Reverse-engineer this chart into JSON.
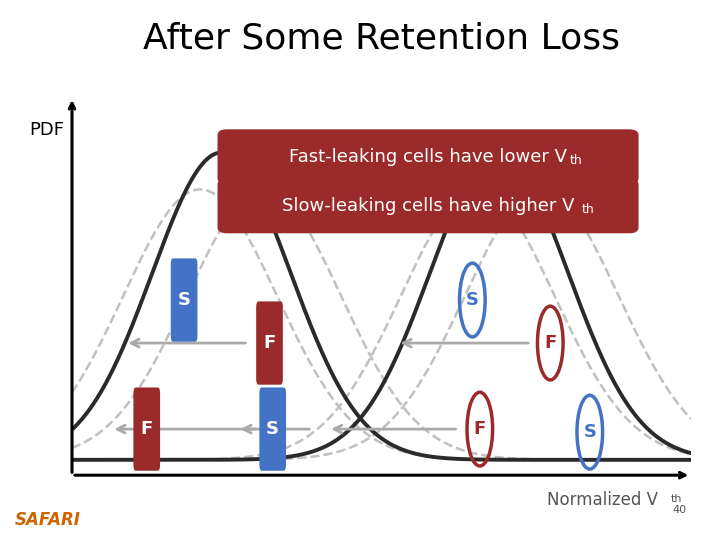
{
  "title": "After Some Retention Loss",
  "title_fontsize": 26,
  "pdf_label": "PDF",
  "xaxis_label": "Normalized V",
  "xaxis_sub": "th",
  "xaxis_num": "40",
  "safari_text": "SAFARI",
  "safari_color": "#CC6600",
  "legend1_text": "Fast-leaking cells have lower V",
  "legend1_sub": "th",
  "legend2_text": "Slow-leaking cells have higher V",
  "legend2_sub": "th",
  "legend_bg": "#9B2B2B",
  "legend_text_color": "#FFFFFF",
  "bg_color": "#FFFFFF",
  "curve_dark": "#2A2A2A",
  "curve_dashed": "#C0C0C0",
  "s_fill_color": "#4472C4",
  "f_fill_color": "#9B2B2B",
  "s_circle_color": "#4472C4",
  "f_circle_color": "#9B2B2B",
  "arrow_color": "#AAAAAA",
  "solid0_mu": 1.2,
  "solid0_sig": 0.65,
  "solid0_amp": 1.0,
  "solid1_mu": 3.8,
  "solid1_sig": 0.65,
  "solid1_amp": 1.0,
  "dash0a_mu": 1.6,
  "dash0a_sig": 0.72,
  "dash0a_amp": 0.88,
  "dash0b_mu": 1.0,
  "dash0b_sig": 0.72,
  "dash0b_amp": 0.88,
  "dash1a_mu": 4.2,
  "dash1a_sig": 0.72,
  "dash1a_amp": 0.88,
  "dash1b_mu": 3.6,
  "dash1b_sig": 0.72,
  "dash1b_amp": 0.88,
  "xlim_lo": -0.2,
  "xlim_hi": 5.6,
  "ylim_lo": -0.05,
  "ylim_hi": 1.18
}
